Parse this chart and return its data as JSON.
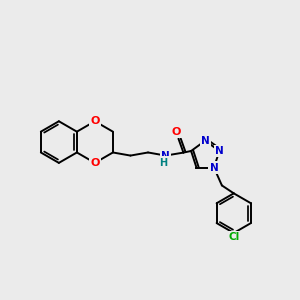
{
  "background_color": "#ebebeb",
  "bond_color": "#000000",
  "atom_colors": {
    "O": "#ff0000",
    "N": "#0000cc",
    "Cl": "#00aa00",
    "H": "#008080"
  },
  "figsize": [
    3.0,
    3.0
  ],
  "dpi": 100
}
